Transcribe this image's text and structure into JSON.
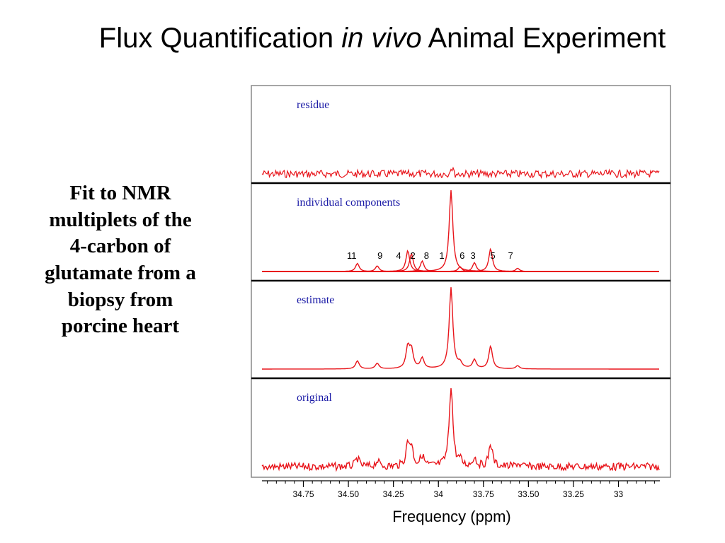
{
  "slide": {
    "title_part1": "Flux Quantification",
    "title_em": "in vivo",
    "title_part2": "Animal Experiment",
    "caption_lines": [
      "Fit to NMR",
      "multiplets of the",
      "4-carbon of",
      "glutamate from a",
      "biopsy from",
      "porcine heart"
    ]
  },
  "colors": {
    "trace": "#e8141a",
    "panel_label": "#1a1aa6",
    "frame": "#000000"
  },
  "chart_data": {
    "type": "line",
    "xlabel": "Frequency (ppm)",
    "x_reversed": true,
    "xlim": [
      34.98,
      32.77
    ],
    "x_ticks": [
      34.75,
      34.5,
      34.25,
      34,
      33.75,
      33.5,
      33.25,
      33
    ],
    "x_tick_labels": [
      "34.75",
      "34.50",
      "34.25",
      "34",
      "33.75",
      "33.50",
      "33.25",
      "33"
    ],
    "grid": false,
    "legend": "none",
    "panels": [
      {
        "label": "residue",
        "kind": "noise",
        "noise_amplitude": 0.03
      },
      {
        "label": "individual components",
        "kind": "components",
        "noise_amplitude": 0
      },
      {
        "label": "estimate",
        "kind": "fit",
        "noise_amplitude": 0
      },
      {
        "label": "original",
        "kind": "fit",
        "noise_amplitude": 0.03
      }
    ],
    "peaks": [
      {
        "label": "11",
        "ppm": 34.45,
        "height": 0.1
      },
      {
        "label": "9",
        "ppm": 34.34,
        "height": 0.07
      },
      {
        "label": "4",
        "ppm": 34.17,
        "height": 0.26
      },
      {
        "label": "2",
        "ppm": 34.15,
        "height": 0.22
      },
      {
        "label": "8",
        "ppm": 34.09,
        "height": 0.13
      },
      {
        "label": "1",
        "ppm": 33.93,
        "height": 1.0
      },
      {
        "label": "6",
        "ppm": 33.88,
        "height": 0.06
      },
      {
        "label": "3",
        "ppm": 33.8,
        "height": 0.11
      },
      {
        "label": "5",
        "ppm": 33.71,
        "height": 0.28
      },
      {
        "label": "7",
        "ppm": 33.56,
        "height": 0.04
      }
    ]
  }
}
